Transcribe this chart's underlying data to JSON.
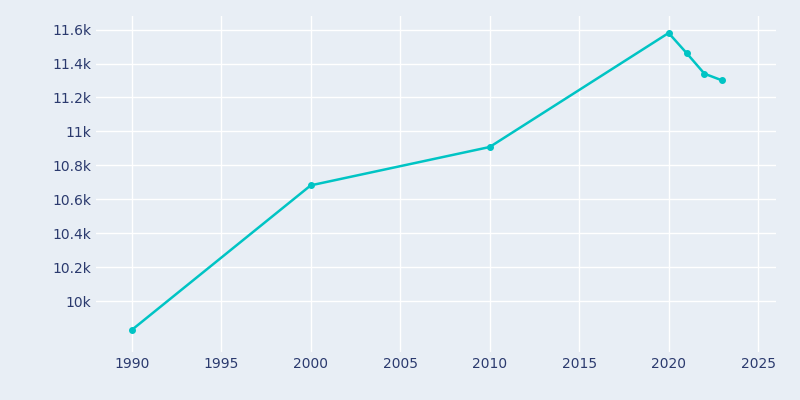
{
  "years": [
    1990,
    2000,
    2010,
    2020,
    2021,
    2022,
    2023
  ],
  "population": [
    9830,
    10682,
    10908,
    11580,
    11462,
    11340,
    11300
  ],
  "line_color": "#00C4C4",
  "marker_color": "#00C4C4",
  "background_color": "#E8EEF5",
  "grid_color": "#FFFFFF",
  "text_color": "#2B3A6E",
  "xlim": [
    1988,
    2026
  ],
  "ylim": [
    9700,
    11680
  ],
  "xticks": [
    1990,
    1995,
    2000,
    2005,
    2010,
    2015,
    2020,
    2025
  ],
  "ytick_values": [
    10000,
    10200,
    10400,
    10600,
    10800,
    11000,
    11200,
    11400,
    11600
  ],
  "ytick_labels": [
    "10k",
    "10.2k",
    "10.4k",
    "10.6k",
    "10.8k",
    "11k",
    "11.2k",
    "11.4k",
    "11.6k"
  ],
  "marker_size": 4,
  "line_width": 1.8,
  "figsize": [
    8.0,
    4.0
  ],
  "dpi": 100
}
